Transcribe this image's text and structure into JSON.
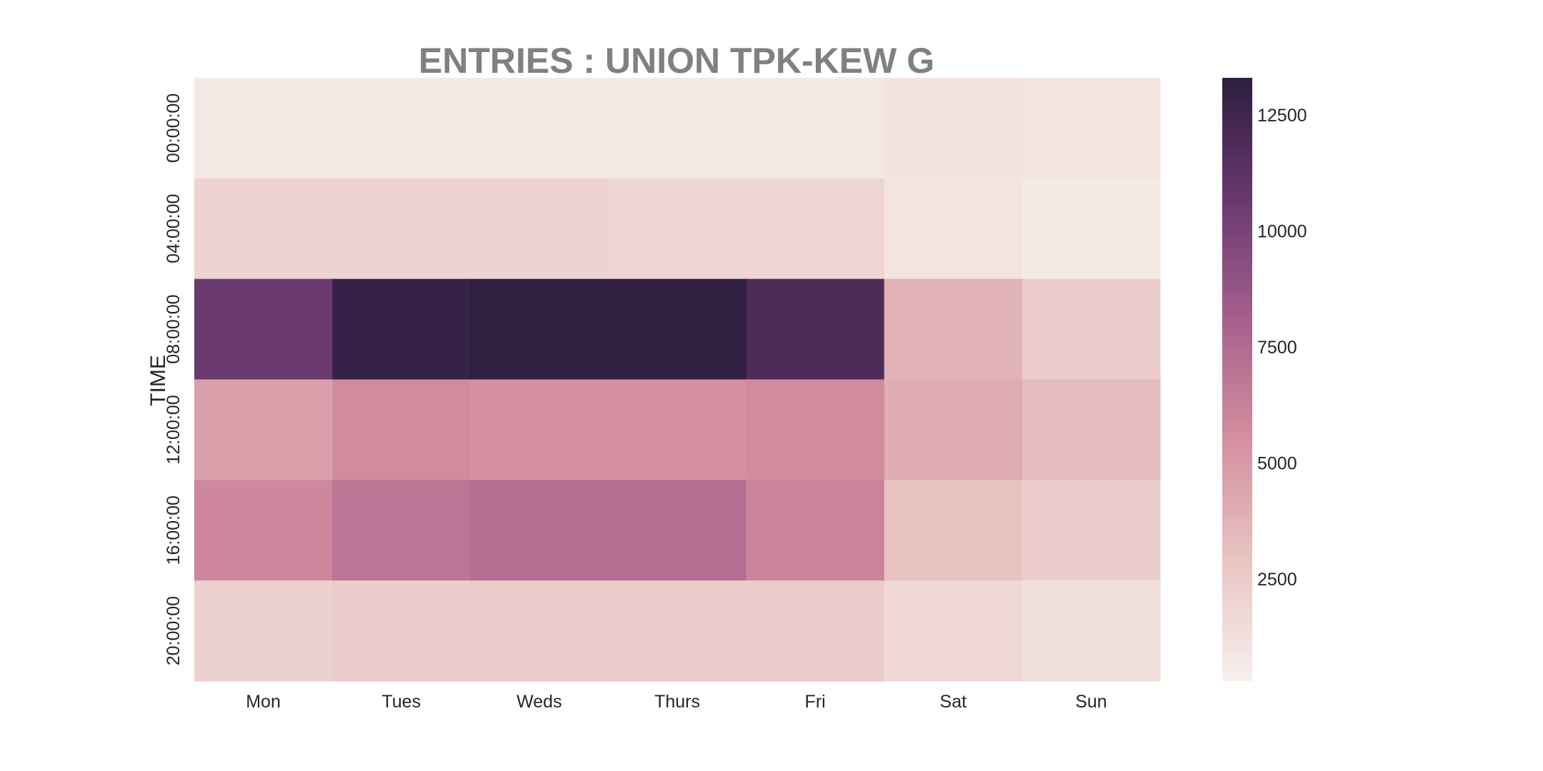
{
  "chart_data": {
    "type": "heatmap",
    "title": "ENTRIES : UNION TPK-KEW G",
    "xlabel": "",
    "ylabel": "TIME",
    "x_categories": [
      "Mon",
      "Tues",
      "Weds",
      "Thurs",
      "Fri",
      "Sat",
      "Sun"
    ],
    "y_categories": [
      "00:00:00",
      "04:00:00",
      "08:00:00",
      "12:00:00",
      "16:00:00",
      "20:00:00"
    ],
    "values": [
      [
        700,
        700,
        700,
        700,
        700,
        1100,
        1000
      ],
      [
        2000,
        2000,
        2000,
        1900,
        1900,
        1000,
        700
      ],
      [
        10600,
        12900,
        13200,
        13100,
        11900,
        3800,
        2400
      ],
      [
        4700,
        5700,
        5500,
        5500,
        5700,
        4100,
        3300
      ],
      [
        5900,
        6900,
        7300,
        7300,
        6100,
        3000,
        2300
      ],
      [
        2200,
        2400,
        2400,
        2500,
        2500,
        1700,
        1300
      ]
    ],
    "colorbar": {
      "min": 300,
      "max": 13300,
      "ticks": [
        2500,
        5000,
        7500,
        10000,
        12500
      ],
      "tick_labels": [
        "2500",
        "5000",
        "7500",
        "10000",
        "12500"
      ]
    },
    "colormap_stops": [
      "#f7f0ed",
      "#e8c4c2",
      "#d48fa0",
      "#a5608c",
      "#693870",
      "#2d1e3e"
    ]
  }
}
